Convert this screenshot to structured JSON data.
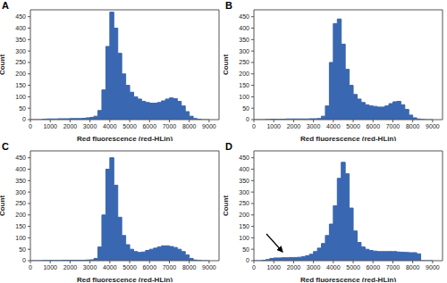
{
  "chart_data": [
    {
      "type": "histogram",
      "title": "A",
      "x_label": "Red fluorescence (red-HLin)",
      "y_label": "Count",
      "color": "#3a67b1",
      "bins": [
        0,
        200,
        400,
        600,
        800,
        1000,
        1200,
        1400,
        1600,
        1800,
        2000,
        2200,
        2400,
        2600,
        2800,
        3000,
        3200,
        3400,
        3600,
        3800,
        4000,
        4200,
        4400,
        4600,
        4800,
        5000,
        5200,
        5400,
        5600,
        5800,
        6000,
        6200,
        6400,
        6600,
        6800,
        7000,
        7200,
        7400,
        7600,
        7800,
        8000,
        8200,
        8400,
        8600,
        8800,
        9000
      ],
      "counts": [
        0,
        0,
        0,
        2,
        3,
        3,
        3,
        4,
        4,
        4,
        5,
        5,
        5,
        6,
        8,
        10,
        15,
        40,
        130,
        320,
        470,
        400,
        290,
        200,
        150,
        120,
        100,
        90,
        80,
        75,
        72,
        72,
        75,
        82,
        90,
        95,
        92,
        80,
        60,
        35,
        15,
        5,
        2,
        0,
        0
      ],
      "xlim": [
        0,
        9500
      ],
      "xticks": [
        0,
        1000,
        2000,
        3000,
        4000,
        5000,
        6000,
        7000,
        8000,
        9000
      ],
      "ylim": [
        0,
        480
      ],
      "yticks": [
        0,
        50,
        100,
        150,
        200,
        250,
        300,
        350,
        400,
        450
      ]
    },
    {
      "type": "histogram",
      "title": "B",
      "x_label": "Red fluorescence (red-HLin)",
      "y_label": "Count",
      "color": "#3a67b1",
      "bins": [
        0,
        200,
        400,
        600,
        800,
        1000,
        1200,
        1400,
        1600,
        1800,
        2000,
        2200,
        2400,
        2600,
        2800,
        3000,
        3200,
        3400,
        3600,
        3800,
        4000,
        4200,
        4400,
        4600,
        4800,
        5000,
        5200,
        5400,
        5600,
        5800,
        6000,
        6200,
        6400,
        6600,
        6800,
        7000,
        7200,
        7400,
        7600,
        7800,
        8000,
        8200,
        8400,
        8600,
        8800,
        9000
      ],
      "counts": [
        0,
        0,
        0,
        1,
        2,
        2,
        2,
        2,
        3,
        3,
        3,
        3,
        3,
        3,
        4,
        4,
        5,
        15,
        60,
        250,
        420,
        440,
        330,
        220,
        150,
        110,
        90,
        75,
        65,
        60,
        58,
        55,
        55,
        60,
        70,
        78,
        80,
        65,
        45,
        20,
        8,
        3,
        1,
        0,
        0
      ],
      "xlim": [
        0,
        9500
      ],
      "xticks": [
        0,
        1000,
        2000,
        3000,
        4000,
        5000,
        6000,
        7000,
        8000,
        9000
      ],
      "ylim": [
        0,
        480
      ],
      "yticks": [
        0,
        50,
        100,
        150,
        200,
        250,
        300,
        350,
        400,
        450
      ]
    },
    {
      "type": "histogram",
      "title": "C",
      "x_label": "Red fluorescence (red-HLin)",
      "y_label": "Count",
      "color": "#3a67b1",
      "bins": [
        0,
        200,
        400,
        600,
        800,
        1000,
        1200,
        1400,
        1600,
        1800,
        2000,
        2200,
        2400,
        2600,
        2800,
        3000,
        3200,
        3400,
        3600,
        3800,
        4000,
        4200,
        4400,
        4600,
        4800,
        5000,
        5200,
        5400,
        5600,
        5800,
        6000,
        6200,
        6400,
        6600,
        6800,
        7000,
        7200,
        7400,
        7600,
        7800,
        8000,
        8200,
        8400,
        8600,
        8800,
        9000
      ],
      "counts": [
        0,
        0,
        0,
        1,
        1,
        1,
        1,
        1,
        2,
        2,
        2,
        2,
        2,
        2,
        3,
        4,
        10,
        60,
        200,
        400,
        450,
        330,
        190,
        110,
        70,
        50,
        40,
        36,
        38,
        45,
        50,
        55,
        60,
        65,
        65,
        62,
        58,
        50,
        40,
        25,
        10,
        3,
        1,
        0,
        0
      ],
      "xlim": [
        0,
        9500
      ],
      "xticks": [
        0,
        1000,
        2000,
        3000,
        4000,
        5000,
        6000,
        7000,
        8000,
        9000
      ],
      "ylim": [
        0,
        480
      ],
      "yticks": [
        0,
        50,
        100,
        150,
        200,
        250,
        300,
        350,
        400,
        450
      ]
    },
    {
      "type": "histogram",
      "title": "D",
      "x_label": "Red fluorescence (red-HLin)",
      "y_label": "Count",
      "color": "#3a67b1",
      "bins": [
        0,
        200,
        400,
        600,
        800,
        1000,
        1200,
        1400,
        1600,
        1800,
        2000,
        2200,
        2400,
        2600,
        2800,
        3000,
        3200,
        3400,
        3600,
        3800,
        4000,
        4200,
        4400,
        4600,
        4800,
        5000,
        5200,
        5400,
        5600,
        5800,
        6000,
        6200,
        6400,
        6600,
        6800,
        7000,
        7200,
        7400,
        7600,
        7800,
        8000,
        8200,
        8400,
        8600,
        8800,
        9000
      ],
      "counts": [
        0,
        0,
        2,
        5,
        10,
        12,
        12,
        13,
        13,
        14,
        14,
        15,
        18,
        22,
        28,
        40,
        55,
        75,
        110,
        160,
        240,
        360,
        430,
        380,
        230,
        130,
        80,
        60,
        50,
        45,
        42,
        40,
        40,
        40,
        40,
        40,
        38,
        37,
        36,
        35,
        35,
        30,
        0,
        0,
        0
      ],
      "xlim": [
        0,
        9500
      ],
      "xticks": [
        0,
        1000,
        2000,
        3000,
        4000,
        5000,
        6000,
        7000,
        8000,
        9000
      ],
      "ylim": [
        0,
        480
      ],
      "yticks": [
        0,
        50,
        100,
        150,
        200,
        250,
        300,
        350,
        400,
        450
      ]
    }
  ]
}
